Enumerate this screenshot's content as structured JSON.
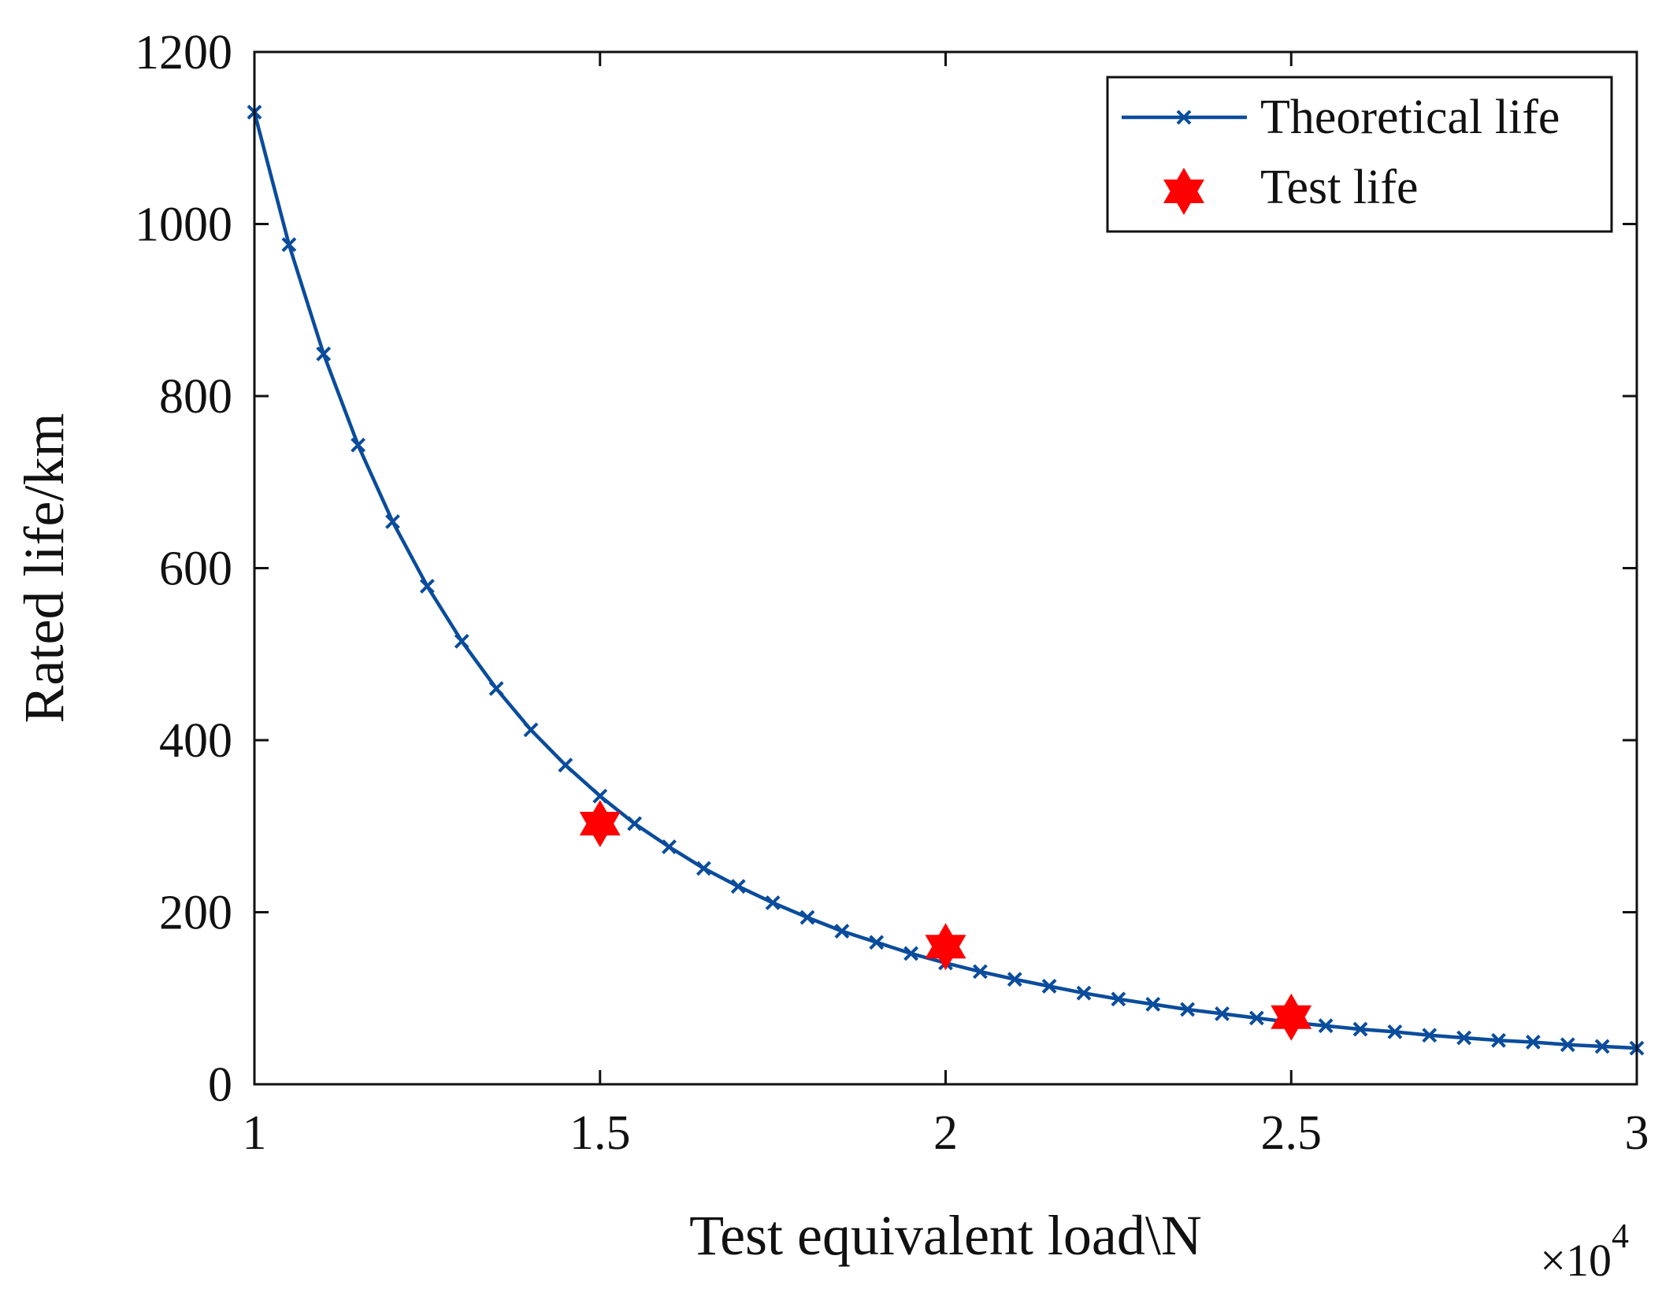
{
  "chart_data": {
    "type": "line",
    "title": "",
    "xlabel": "Test equivalent load\\N",
    "ylabel": "Rated life/km",
    "x_multiplier_label": "×10",
    "x_multiplier_exponent": "4",
    "xlim": [
      1,
      3
    ],
    "ylim": [
      0,
      1200
    ],
    "xticks": [
      1,
      1.5,
      2,
      2.5,
      3
    ],
    "xtick_labels": [
      "1",
      "1.5",
      "2",
      "2.5",
      "3"
    ],
    "yticks": [
      0,
      200,
      400,
      600,
      800,
      1000,
      1200
    ],
    "ytick_labels": [
      "0",
      "200",
      "400",
      "600",
      "800",
      "1000",
      "1200"
    ],
    "grid": false,
    "legend_position": "top-right",
    "series": [
      {
        "name": "Theoretical life",
        "style": "line-with-x-markers",
        "color": "#0a4c9c",
        "x": [
          1,
          1.05,
          1.1,
          1.15,
          1.2,
          1.25,
          1.3,
          1.35,
          1.4,
          1.45,
          1.5,
          1.55,
          1.6,
          1.65,
          1.7,
          1.75,
          1.8,
          1.85,
          1.9,
          1.95,
          2,
          2.05,
          2.1,
          2.15,
          2.2,
          2.25,
          2.3,
          2.35,
          2.4,
          2.45,
          2.5,
          2.55,
          2.6,
          2.65,
          2.7,
          2.75,
          2.8,
          2.85,
          2.9,
          2.95,
          3
        ],
        "y": [
          1130,
          976,
          849,
          743,
          654,
          579,
          515,
          460,
          412,
          371,
          335,
          303,
          276,
          251,
          230,
          211,
          194,
          178,
          165,
          152,
          141,
          131,
          122,
          114,
          106,
          99,
          93,
          87,
          82,
          77,
          72,
          68,
          64,
          61,
          57,
          54,
          51,
          49,
          46,
          44,
          42
        ]
      },
      {
        "name": "Test life",
        "style": "star-markers",
        "color": "#ff0000",
        "x": [
          1.5,
          2,
          2.5
        ],
        "y": [
          303,
          160,
          78
        ]
      }
    ]
  }
}
